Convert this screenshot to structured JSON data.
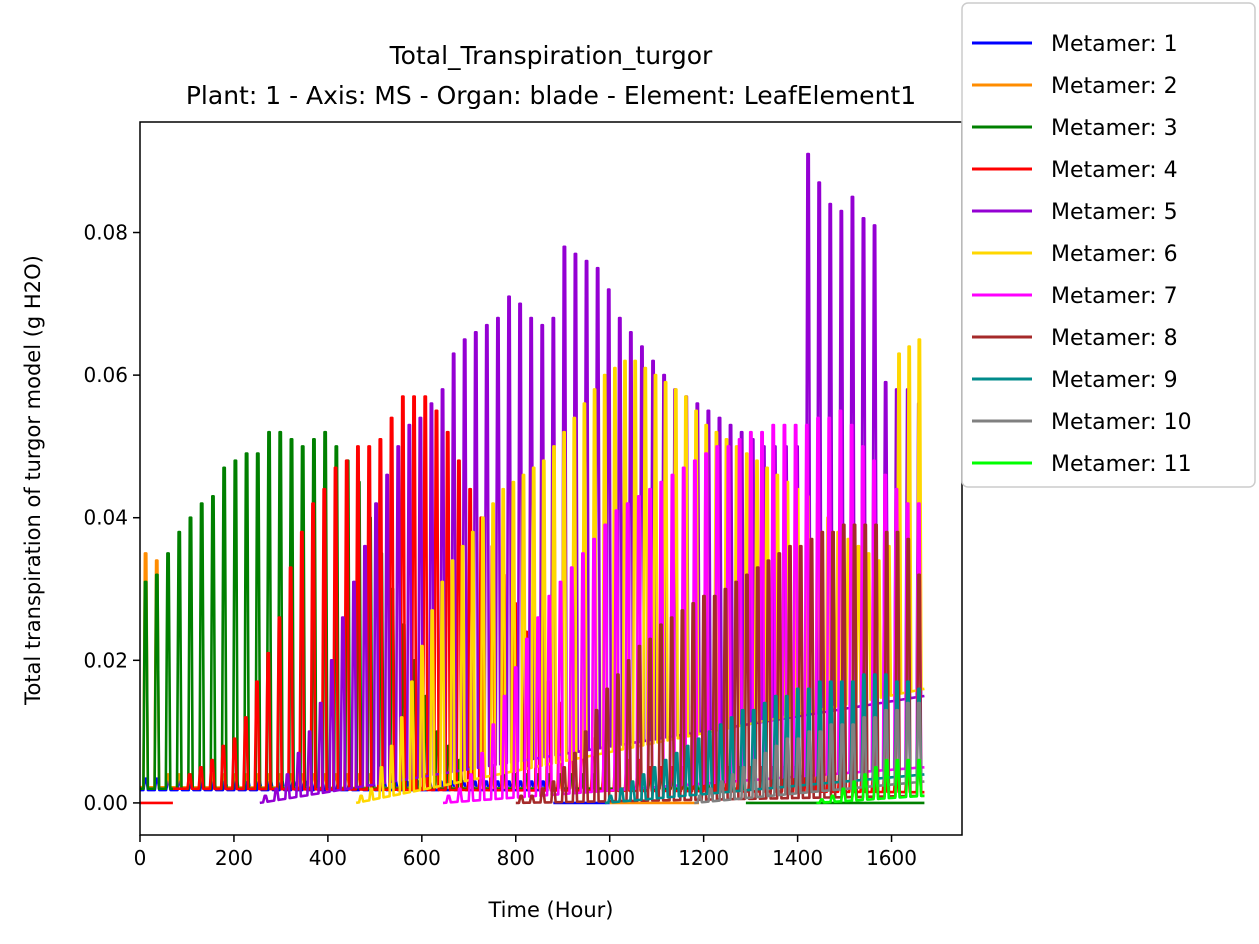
{
  "chart_data": {
    "type": "line",
    "title": "Total_Transpiration_turgor",
    "subtitle": "Plant: 1 - Axis: MS - Organ: blade - Element: LeafElement1",
    "xlabel": "Time (Hour)",
    "ylabel": "Total transpiration of turgor model (g H2O)",
    "xlim": [
      0,
      1750
    ],
    "ylim": [
      -0.0045,
      0.0955
    ],
    "xticks": [
      "0",
      "200",
      "400",
      "600",
      "800",
      "1000",
      "1200",
      "1400",
      "1600"
    ],
    "yticks": [
      "0.00",
      "0.02",
      "0.04",
      "0.06",
      "0.08"
    ],
    "grid": false,
    "legend_position": "outside-top-right",
    "series": [
      {
        "name": "Metamer: 1",
        "color": "#0000ff",
        "segments": [
          {
            "start": 0,
            "end": 870,
            "base": 0.0018,
            "baseEnd": 0.0018,
            "peaks": [
              0.0034,
              0.0034,
              0.003,
              0.003,
              0.003,
              0.003,
              0.003,
              0.003,
              0.003,
              0.003,
              0.003,
              0.003,
              0.003,
              0.003,
              0.003,
              0.003,
              0.003,
              0.003,
              0.003,
              0.003,
              0.003,
              0.003,
              0.003,
              0.003,
              0.003,
              0.003,
              0.003,
              0.003,
              0.003,
              0.003,
              0.003,
              0.003,
              0.003,
              0.003,
              0.003,
              0.003
            ]
          },
          {
            "start": 880,
            "end": 1000,
            "base": 0.0,
            "baseEnd": 0.0,
            "peaks": []
          }
        ]
      },
      {
        "name": "Metamer: 2",
        "color": "#ff8c00",
        "segments": [
          {
            "start": 0,
            "end": 1000,
            "base": 0.0022,
            "baseEnd": 0.002,
            "peaks": [
              0.035,
              0.034,
              0.004,
              0.004,
              0.004,
              0.004,
              0.004,
              0.004,
              0.004,
              0.004,
              0.004,
              0.004,
              0.004,
              0.004,
              0.004,
              0.004,
              0.004,
              0.004,
              0.004,
              0.004,
              0.004,
              0.004,
              0.004,
              0.004,
              0.004,
              0.004,
              0.004,
              0.004,
              0.004,
              0.004,
              0.004,
              0.004,
              0.004,
              0.004,
              0.004,
              0.004,
              0.004,
              0.004,
              0.004,
              0.004,
              0.004,
              0.004
            ]
          },
          {
            "start": 1000,
            "end": 1190,
            "base": 0.0,
            "baseEnd": 0.0,
            "peaks": []
          }
        ]
      },
      {
        "name": "Metamer: 3",
        "color": "#008000",
        "segments": [
          {
            "start": 0,
            "end": 1290,
            "base": 0.002,
            "baseEnd": 0.002,
            "peaks": [
              0.031,
              0.032,
              0.035,
              0.038,
              0.04,
              0.042,
              0.043,
              0.047,
              0.048,
              0.049,
              0.049,
              0.052,
              0.052,
              0.051,
              0.05,
              0.051,
              0.052,
              0.05,
              0.048,
              0.045,
              0.04,
              0.035,
              0.03,
              0.025,
              0.02,
              0.015,
              0.01,
              0.008,
              0.006,
              0.005,
              0.005,
              0.005,
              0.005,
              0.004,
              0.004,
              0.004,
              0.004,
              0.004,
              0.004,
              0.004,
              0.004,
              0.004,
              0.004,
              0.004,
              0.004,
              0.004,
              0.004,
              0.004,
              0.004,
              0.004,
              0.004,
              0.004,
              0.004,
              0.004
            ]
          },
          {
            "start": 1290,
            "end": 1670,
            "base": 0.0,
            "baseEnd": 0.0,
            "peaks": []
          }
        ]
      },
      {
        "name": "Metamer: 4",
        "color": "#ff0000",
        "segments": [
          {
            "start": 0,
            "end": 70,
            "base": 0.0,
            "baseEnd": 0.0,
            "peaks": []
          },
          {
            "start": 70,
            "end": 1670,
            "base": 0.002,
            "baseEnd": 0.0015,
            "peaks": [
              0.002,
              0.004,
              0.005,
              0.006,
              0.008,
              0.009,
              0.012,
              0.017,
              0.021,
              0.026,
              0.033,
              0.038,
              0.042,
              0.044,
              0.047,
              0.048,
              0.05,
              0.05,
              0.051,
              0.054,
              0.057,
              0.057,
              0.057,
              0.055,
              0.052,
              0.048,
              0.044,
              0.04,
              0.036,
              0.032,
              0.028,
              0.024,
              0.02,
              0.017,
              0.014,
              0.012,
              0.01,
              0.009,
              0.008,
              0.007,
              0.006,
              0.006,
              0.005,
              0.005,
              0.005,
              0.005,
              0.005,
              0.005,
              0.005,
              0.005,
              0.005,
              0.005,
              0.005,
              0.005,
              0.005,
              0.005,
              0.005,
              0.005,
              0.005,
              0.005,
              0.005,
              0.005,
              0.005,
              0.005,
              0.005,
              0.005,
              0.005
            ]
          }
        ]
      },
      {
        "name": "Metamer: 5",
        "color": "#9400d3",
        "segments": [
          {
            "start": 255,
            "end": 1670,
            "base": 0.0,
            "baseEnd": 0.015,
            "peaks": [
              0.001,
              0.002,
              0.004,
              0.007,
              0.01,
              0.014,
              0.02,
              0.026,
              0.031,
              0.036,
              0.042,
              0.046,
              0.05,
              0.053,
              0.054,
              0.056,
              0.058,
              0.063,
              0.065,
              0.066,
              0.067,
              0.068,
              0.071,
              0.07,
              0.068,
              0.067,
              0.068,
              0.078,
              0.077,
              0.076,
              0.075,
              0.072,
              0.068,
              0.066,
              0.064,
              0.062,
              0.06,
              0.058,
              0.057,
              0.056,
              0.055,
              0.054,
              0.053,
              0.052,
              0.051,
              0.05,
              0.05,
              0.05,
              0.05,
              0.091,
              0.087,
              0.084,
              0.083,
              0.085,
              0.082,
              0.081,
              0.059,
              0.058,
              0.058,
              0.056
            ]
          }
        ]
      },
      {
        "name": "Metamer: 6",
        "color": "#ffd700",
        "segments": [
          {
            "start": 460,
            "end": 1670,
            "base": 0.0,
            "baseEnd": 0.016,
            "peaks": [
              0.001,
              0.002,
              0.005,
              0.008,
              0.012,
              0.017,
              0.022,
              0.027,
              0.031,
              0.034,
              0.036,
              0.038,
              0.04,
              0.042,
              0.044,
              0.045,
              0.046,
              0.047,
              0.048,
              0.05,
              0.052,
              0.054,
              0.056,
              0.058,
              0.06,
              0.061,
              0.062,
              0.062,
              0.061,
              0.06,
              0.059,
              0.058,
              0.057,
              0.055,
              0.053,
              0.052,
              0.051,
              0.05,
              0.049,
              0.048,
              0.047,
              0.046,
              0.045,
              0.044,
              0.043,
              0.042,
              0.04,
              0.038,
              0.037,
              0.036,
              0.035,
              0.034,
              0.036,
              0.063,
              0.064,
              0.065
            ]
          }
        ]
      },
      {
        "name": "Metamer: 7",
        "color": "#ff00ff",
        "segments": [
          {
            "start": 645,
            "end": 1670,
            "base": 0.0,
            "baseEnd": 0.005,
            "peaks": [
              0.001,
              0.002,
              0.004,
              0.007,
              0.011,
              0.015,
              0.019,
              0.023,
              0.026,
              0.029,
              0.031,
              0.033,
              0.035,
              0.037,
              0.039,
              0.041,
              0.042,
              0.043,
              0.044,
              0.045,
              0.046,
              0.047,
              0.048,
              0.049,
              0.05,
              0.05,
              0.051,
              0.052,
              0.052,
              0.053,
              0.053,
              0.053,
              0.053,
              0.054,
              0.054,
              0.055,
              0.053,
              0.05,
              0.048,
              0.046,
              0.044,
              0.042,
              0.042
            ]
          }
        ]
      },
      {
        "name": "Metamer: 8",
        "color": "#a52a2a",
        "segments": [
          {
            "start": 800,
            "end": 1670,
            "base": 0.0,
            "baseEnd": 0.001,
            "peaks": [
              0.001,
              0.001,
              0.002,
              0.003,
              0.005,
              0.007,
              0.01,
              0.013,
              0.016,
              0.018,
              0.02,
              0.022,
              0.023,
              0.025,
              0.026,
              0.027,
              0.028,
              0.029,
              0.029,
              0.03,
              0.031,
              0.032,
              0.033,
              0.034,
              0.035,
              0.036,
              0.036,
              0.037,
              0.038,
              0.038,
              0.039,
              0.039,
              0.039,
              0.039,
              0.038,
              0.038,
              0.037,
              0.032
            ]
          }
        ]
      },
      {
        "name": "Metamer: 9",
        "color": "#008b8b",
        "segments": [
          {
            "start": 990,
            "end": 1670,
            "base": 0.0,
            "baseEnd": 0.004,
            "peaks": [
              0.001,
              0.002,
              0.003,
              0.004,
              0.005,
              0.006,
              0.007,
              0.008,
              0.009,
              0.01,
              0.011,
              0.012,
              0.013,
              0.013,
              0.014,
              0.015,
              0.015,
              0.016,
              0.016,
              0.017,
              0.017,
              0.017,
              0.017,
              0.018,
              0.018,
              0.018,
              0.017,
              0.017,
              0.016
            ]
          }
        ]
      },
      {
        "name": "Metamer: 10",
        "color": "#808080",
        "segments": [
          {
            "start": 1180,
            "end": 1670,
            "base": 0.0,
            "baseEnd": 0.003,
            "peaks": [
              0.001,
              0.002,
              0.003,
              0.004,
              0.005,
              0.006,
              0.007,
              0.008,
              0.009,
              0.009,
              0.01,
              0.01,
              0.011,
              0.011,
              0.011,
              0.012,
              0.012,
              0.013,
              0.013,
              0.014,
              0.014
            ]
          }
        ]
      },
      {
        "name": "Metamer: 11",
        "color": "#00ff00",
        "segments": [
          {
            "start": 1440,
            "end": 1670,
            "base": 0.0,
            "baseEnd": 0.001,
            "peaks": [
              0.0005,
              0.001,
              0.002,
              0.003,
              0.004,
              0.005,
              0.006,
              0.006,
              0.006,
              0.006
            ]
          }
        ]
      }
    ]
  }
}
